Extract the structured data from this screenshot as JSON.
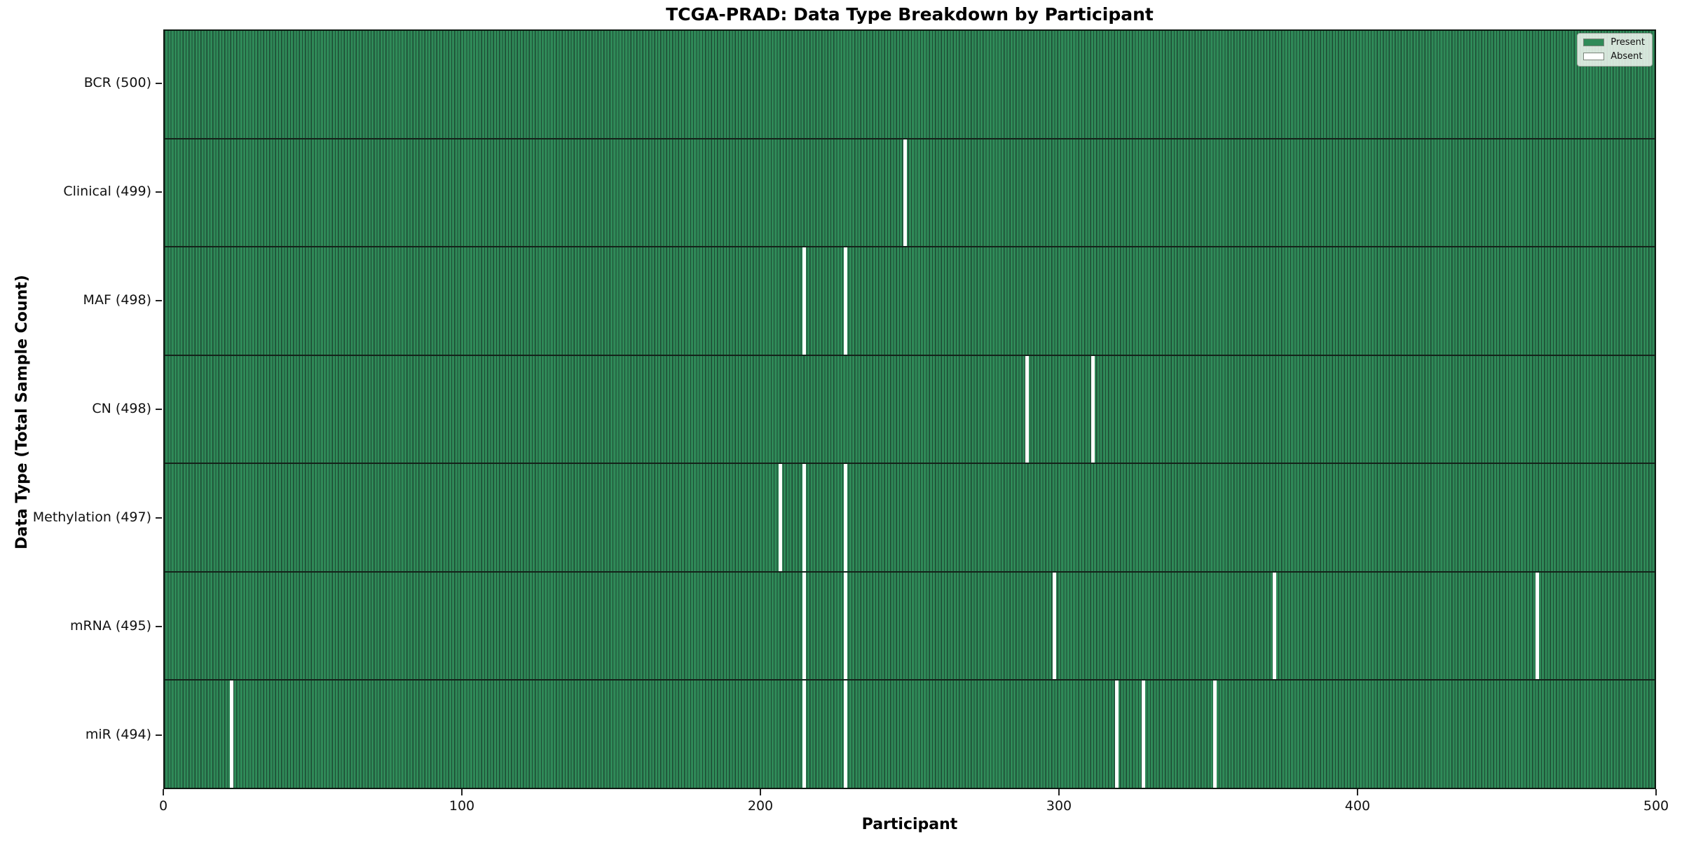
{
  "chart_data": {
    "type": "heatmap",
    "title": "TCGA-PRAD: Data Type Breakdown by Participant",
    "xlabel": "Participant",
    "ylabel": "Data Type (Total Sample Count)",
    "xlim": [
      0,
      500
    ],
    "x_ticks": [
      0,
      100,
      200,
      300,
      400,
      500
    ],
    "n_participants": 500,
    "grid": false,
    "legend": {
      "position": "upper right",
      "entries": [
        {
          "label": "Present",
          "color": "#2f8a58"
        },
        {
          "label": "Absent",
          "color": "#ffffff"
        }
      ]
    },
    "rows": [
      {
        "data_type": "BCR",
        "total": 500,
        "label": "BCR (500)",
        "absent_participants": []
      },
      {
        "data_type": "Clinical",
        "total": 499,
        "label": "Clinical (499)",
        "absent_participants": [
          248
        ]
      },
      {
        "data_type": "MAF",
        "total": 498,
        "label": "MAF (498)",
        "absent_participants": [
          214,
          228
        ]
      },
      {
        "data_type": "CN",
        "total": 498,
        "label": "CN (498)",
        "absent_participants": [
          289,
          311
        ]
      },
      {
        "data_type": "Methylation",
        "total": 497,
        "label": "Methylation (497)",
        "absent_participants": [
          206,
          214,
          228
        ]
      },
      {
        "data_type": "mRNA",
        "total": 495,
        "label": "mRNA (495)",
        "absent_participants": [
          214,
          228,
          298,
          372,
          460
        ]
      },
      {
        "data_type": "miR",
        "total": 494,
        "label": "miR (494)",
        "absent_participants": [
          22,
          214,
          228,
          319,
          328,
          352
        ]
      }
    ],
    "colors": {
      "present": "#2f8a58",
      "cell_edge": "#1d4a33",
      "absent": "#ffffff",
      "row_separator": "#14231a",
      "plot_border": "#0e1a12",
      "text": "#111111"
    }
  }
}
